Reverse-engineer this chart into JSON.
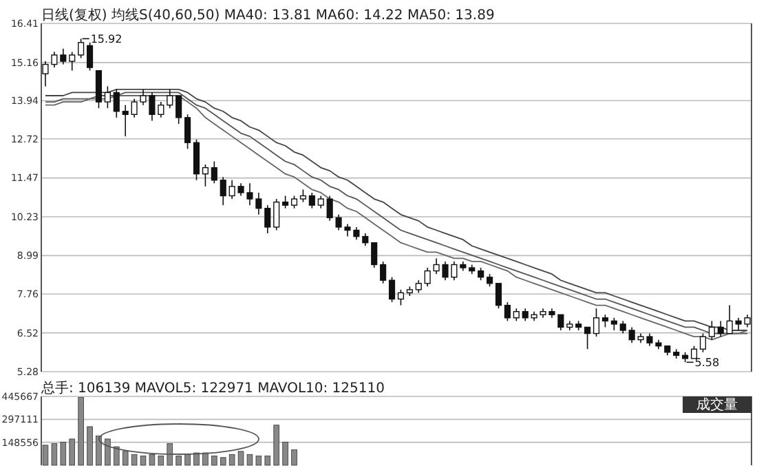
{
  "chart_data": [
    {
      "type": "candlestick",
      "title": "日线(复权)  均线S(40,60,50) MA40: 13.81 MA60: 14.22 MA50: 13.89",
      "categories": [
        null,
        null,
        null,
        null,
        null,
        null,
        null,
        null,
        null,
        null,
        null,
        null,
        null,
        null,
        null,
        null,
        null,
        null,
        null,
        null,
        null,
        null,
        null,
        null,
        null,
        null,
        null,
        null,
        null,
        null,
        null,
        null,
        null,
        null,
        null,
        null,
        null,
        null,
        null,
        null,
        null,
        null,
        null,
        null,
        null,
        null,
        null,
        null,
        null,
        null,
        null,
        null,
        null,
        null,
        null,
        null,
        null,
        null,
        null,
        null,
        null,
        null,
        null,
        null,
        null,
        null,
        null,
        null,
        null,
        null,
        null,
        null,
        null,
        null,
        null,
        null,
        null,
        null,
        null,
        null
      ],
      "ohlc": [
        [
          14.8,
          15.2,
          14.4,
          15.1
        ],
        [
          15.1,
          15.5,
          15.0,
          15.4
        ],
        [
          15.4,
          15.6,
          15.1,
          15.2
        ],
        [
          15.2,
          15.5,
          14.9,
          15.4
        ],
        [
          15.4,
          15.92,
          15.3,
          15.8
        ],
        [
          15.7,
          15.8,
          14.9,
          15.0
        ],
        [
          14.9,
          14.9,
          13.7,
          13.9
        ],
        [
          13.9,
          14.4,
          13.7,
          14.2
        ],
        [
          14.2,
          14.3,
          13.4,
          13.6
        ],
        [
          13.6,
          13.8,
          12.8,
          13.5
        ],
        [
          13.5,
          14.0,
          13.4,
          13.9
        ],
        [
          13.9,
          14.3,
          13.8,
          14.1
        ],
        [
          14.1,
          14.2,
          13.3,
          13.5
        ],
        [
          13.5,
          13.9,
          13.4,
          13.8
        ],
        [
          13.8,
          14.3,
          13.7,
          14.1
        ],
        [
          14.1,
          14.1,
          13.2,
          13.4
        ],
        [
          13.4,
          13.5,
          12.4,
          12.6
        ],
        [
          12.6,
          12.7,
          11.4,
          11.6
        ],
        [
          11.6,
          11.9,
          11.2,
          11.8
        ],
        [
          11.8,
          12.0,
          11.3,
          11.4
        ],
        [
          11.4,
          11.5,
          10.6,
          10.9
        ],
        [
          10.9,
          11.4,
          10.8,
          11.2
        ],
        [
          11.2,
          11.3,
          10.9,
          11.0
        ],
        [
          11.0,
          11.3,
          10.6,
          10.8
        ],
        [
          10.8,
          11.0,
          10.3,
          10.5
        ],
        [
          10.5,
          10.6,
          9.7,
          9.9
        ],
        [
          9.9,
          10.8,
          9.8,
          10.7
        ],
        [
          10.7,
          10.9,
          10.5,
          10.6
        ],
        [
          10.6,
          10.9,
          10.5,
          10.8
        ],
        [
          10.8,
          11.1,
          10.7,
          10.9
        ],
        [
          10.9,
          11.0,
          10.5,
          10.6
        ],
        [
          10.6,
          10.9,
          10.5,
          10.8
        ],
        [
          10.8,
          10.9,
          10.1,
          10.2
        ],
        [
          10.2,
          10.3,
          9.8,
          9.9
        ],
        [
          9.9,
          10.0,
          9.6,
          9.8
        ],
        [
          9.8,
          9.9,
          9.5,
          9.6
        ],
        [
          9.6,
          9.7,
          9.3,
          9.4
        ],
        [
          9.4,
          9.4,
          8.6,
          8.7
        ],
        [
          8.7,
          8.8,
          8.1,
          8.2
        ],
        [
          8.2,
          8.3,
          7.5,
          7.6
        ],
        [
          7.6,
          7.9,
          7.4,
          7.8
        ],
        [
          7.8,
          8.0,
          7.7,
          7.9
        ],
        [
          7.9,
          8.2,
          7.8,
          8.1
        ],
        [
          8.1,
          8.6,
          8.0,
          8.5
        ],
        [
          8.5,
          8.9,
          8.4,
          8.7
        ],
        [
          8.7,
          8.8,
          8.2,
          8.3
        ],
        [
          8.3,
          8.8,
          8.2,
          8.7
        ],
        [
          8.7,
          8.8,
          8.5,
          8.6
        ],
        [
          8.6,
          8.7,
          8.4,
          8.5
        ],
        [
          8.5,
          8.6,
          8.2,
          8.3
        ],
        [
          8.3,
          8.4,
          8.0,
          8.1
        ],
        [
          8.1,
          8.1,
          7.3,
          7.4
        ],
        [
          7.4,
          7.5,
          6.9,
          7.0
        ],
        [
          7.0,
          7.3,
          6.9,
          7.2
        ],
        [
          7.2,
          7.3,
          6.9,
          7.0
        ],
        [
          7.0,
          7.2,
          6.9,
          7.1
        ],
        [
          7.1,
          7.3,
          7.0,
          7.2
        ],
        [
          7.2,
          7.3,
          7.0,
          7.1
        ],
        [
          7.1,
          7.1,
          6.6,
          6.7
        ],
        [
          6.7,
          6.9,
          6.6,
          6.8
        ],
        [
          6.8,
          6.9,
          6.6,
          6.7
        ],
        [
          6.7,
          6.7,
          6.0,
          6.5
        ],
        [
          6.5,
          7.3,
          6.4,
          7.0
        ],
        [
          7.0,
          7.1,
          6.7,
          6.9
        ],
        [
          6.9,
          7.0,
          6.6,
          6.8
        ],
        [
          6.8,
          6.9,
          6.5,
          6.6
        ],
        [
          6.6,
          6.7,
          6.2,
          6.3
        ],
        [
          6.3,
          6.5,
          6.2,
          6.4
        ],
        [
          6.4,
          6.5,
          6.1,
          6.2
        ],
        [
          6.2,
          6.3,
          6.0,
          6.1
        ],
        [
          6.1,
          6.1,
          5.8,
          5.9
        ],
        [
          5.9,
          6.0,
          5.7,
          5.8
        ],
        [
          5.8,
          5.9,
          5.58,
          5.7
        ],
        [
          5.7,
          6.1,
          5.7,
          6.0
        ],
        [
          6.0,
          6.5,
          5.9,
          6.4
        ],
        [
          6.4,
          6.9,
          6.3,
          6.7
        ],
        [
          6.7,
          6.9,
          6.4,
          6.5
        ],
        [
          6.5,
          7.4,
          6.5,
          6.9
        ],
        [
          6.9,
          7.0,
          6.6,
          6.8
        ],
        [
          6.8,
          7.1,
          6.7,
          7.0
        ]
      ],
      "series": [
        {
          "type": "line",
          "color": "#444444",
          "values": [
            14.1,
            14.1,
            14.1,
            14.2,
            14.2,
            14.2,
            14.2,
            14.2,
            14.3,
            14.3,
            14.3,
            14.3,
            14.3,
            14.3,
            14.3,
            14.3,
            14.2,
            14.0,
            13.9,
            13.7,
            13.6,
            13.4,
            13.3,
            13.1,
            13.0,
            12.8,
            12.6,
            12.5,
            12.3,
            12.2,
            12.0,
            11.8,
            11.7,
            11.5,
            11.4,
            11.2,
            11.0,
            10.8,
            10.7,
            10.5,
            10.3,
            10.2,
            10.1,
            9.9,
            9.8,
            9.7,
            9.6,
            9.5,
            9.3,
            9.2,
            9.1,
            9.0,
            8.9,
            8.8,
            8.7,
            8.6,
            8.5,
            8.4,
            8.2,
            8.1,
            8.0,
            7.9,
            7.8,
            7.8,
            7.7,
            7.6,
            7.5,
            7.4,
            7.3,
            7.2,
            7.1,
            7.0,
            6.9,
            6.9,
            6.8,
            6.7,
            6.7,
            6.6,
            6.6,
            6.6
          ]
        },
        {
          "type": "line",
          "color": "#555555",
          "values": [
            13.9,
            13.9,
            14.0,
            14.0,
            14.0,
            14.0,
            14.1,
            14.1,
            14.1,
            14.2,
            14.2,
            14.2,
            14.2,
            14.2,
            14.2,
            14.2,
            14.0,
            13.8,
            13.7,
            13.5,
            13.3,
            13.1,
            12.9,
            12.8,
            12.6,
            12.4,
            12.2,
            12.0,
            11.9,
            11.7,
            11.5,
            11.4,
            11.2,
            11.1,
            10.9,
            10.8,
            10.6,
            10.4,
            10.2,
            10.0,
            9.8,
            9.7,
            9.6,
            9.5,
            9.4,
            9.3,
            9.2,
            9.1,
            9.0,
            8.9,
            8.8,
            8.7,
            8.6,
            8.5,
            8.4,
            8.3,
            8.2,
            8.1,
            8.0,
            7.9,
            7.8,
            7.7,
            7.6,
            7.6,
            7.5,
            7.4,
            7.3,
            7.2,
            7.1,
            7.0,
            6.9,
            6.8,
            6.7,
            6.7,
            6.6,
            6.5,
            6.5,
            6.5,
            6.5,
            6.5
          ]
        },
        {
          "type": "line",
          "color": "#666666",
          "values": [
            13.8,
            13.8,
            13.9,
            13.9,
            13.9,
            14.0,
            14.0,
            14.0,
            14.1,
            14.1,
            14.1,
            14.1,
            14.1,
            14.1,
            14.1,
            14.1,
            13.9,
            13.7,
            13.4,
            13.2,
            13.0,
            12.8,
            12.6,
            12.4,
            12.2,
            12.0,
            11.8,
            11.6,
            11.5,
            11.3,
            11.1,
            11.0,
            10.8,
            10.7,
            10.5,
            10.4,
            10.2,
            10.0,
            9.8,
            9.6,
            9.4,
            9.3,
            9.2,
            9.1,
            9.1,
            9.0,
            8.9,
            8.9,
            8.8,
            8.8,
            8.7,
            8.6,
            8.5,
            8.3,
            8.2,
            8.1,
            8.0,
            7.9,
            7.8,
            7.7,
            7.6,
            7.5,
            7.4,
            7.4,
            7.3,
            7.2,
            7.1,
            7.0,
            6.9,
            6.8,
            6.7,
            6.6,
            6.5,
            6.4,
            6.4,
            6.3,
            6.4,
            6.5,
            6.5,
            6.6
          ]
        }
      ],
      "ylim": [
        5.28,
        16.41
      ],
      "yticks": [
        5.28,
        6.52,
        7.76,
        8.99,
        10.23,
        11.47,
        12.72,
        13.94,
        15.16,
        16.41
      ],
      "grid": "y",
      "tick_labels": "y",
      "annotations": [
        "15.92",
        "5.58"
      ]
    },
    {
      "type": "bar",
      "title": "总手: 106139 MAVOL5: 122971 MAVOL10: 125110",
      "categories": [
        null,
        null,
        null,
        null,
        null,
        null,
        null,
        null,
        null,
        null,
        null,
        null,
        null,
        null,
        null,
        null,
        null,
        null,
        null,
        null,
        null,
        null,
        null,
        null,
        null,
        null,
        null,
        null,
        null,
        null,
        null,
        null,
        null,
        null,
        null,
        null,
        null,
        null,
        null,
        null,
        null,
        null,
        null,
        null,
        null,
        null,
        null,
        null,
        null,
        null,
        null,
        null,
        null,
        null,
        null,
        null,
        null,
        null,
        null,
        null,
        null,
        null,
        null,
        null,
        null,
        null,
        null,
        null,
        null,
        null,
        null,
        null,
        null,
        null,
        null,
        null,
        null,
        null,
        null,
        null
      ],
      "values": [
        130000,
        140000,
        150000,
        170000,
        440000,
        250000,
        190000,
        170000,
        120000,
        90000,
        70000,
        60000,
        70000,
        60000,
        140000,
        60000,
        70000,
        80000,
        80000,
        60000,
        50000,
        70000,
        90000,
        70000,
        60000,
        60000,
        260000,
        150000,
        100000,
        null,
        null,
        null,
        null,
        null,
        null,
        null,
        null,
        null,
        null,
        null,
        null,
        null,
        null,
        null,
        null,
        null,
        null,
        null,
        null,
        null,
        null,
        null,
        null,
        null,
        null,
        null,
        null,
        null,
        null,
        null,
        null,
        null,
        null,
        null,
        null,
        null,
        null,
        null,
        null,
        null,
        null,
        null,
        null,
        null,
        null,
        null,
        null,
        null,
        null,
        null
      ],
      "color": "#888888",
      "ylim": [
        0,
        445667
      ],
      "yticks": [
        148556,
        297111,
        445667
      ],
      "grid": "y",
      "tick_labels": "y",
      "annotations": [
        "成交量"
      ]
    }
  ]
}
